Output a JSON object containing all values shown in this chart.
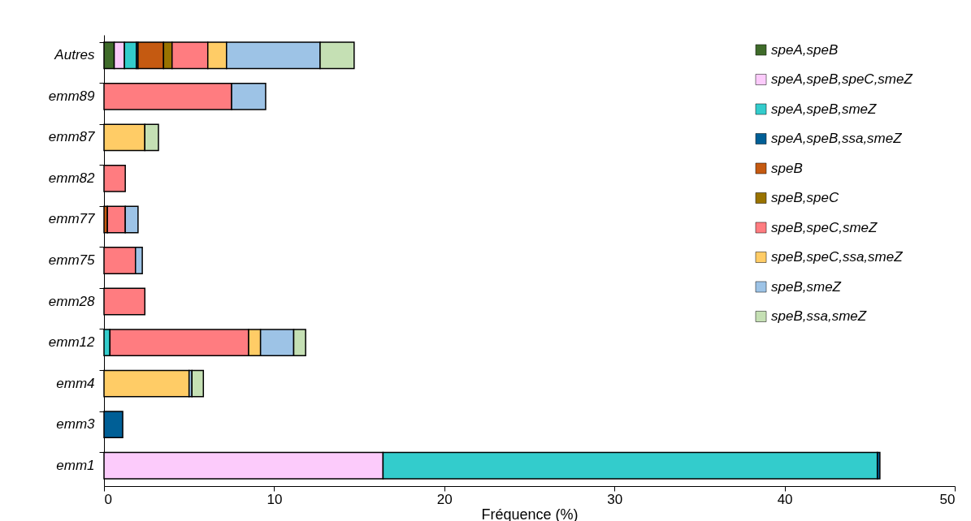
{
  "chart_data": {
    "type": "bar",
    "orientation": "horizontal",
    "stacked": true,
    "xlabel": "Fréquence (%)",
    "categories": [
      "Autres",
      "emm89",
      "emm87",
      "emm82",
      "emm77",
      "emm75",
      "emm28",
      "emm12",
      "emm4",
      "emm3",
      "emm1"
    ],
    "xlim": [
      0,
      50
    ],
    "xticks": [
      0,
      10,
      20,
      30,
      40,
      50
    ],
    "grid": false,
    "legend": "top right",
    "series": [
      {
        "name": "speA,speB",
        "color": "#3f6b2a",
        "values": [
          0.6,
          null,
          null,
          null,
          null,
          null,
          null,
          null,
          null,
          null,
          null
        ]
      },
      {
        "name": "speA,speB,speC,smeZ",
        "color": "#fccbfb",
        "values": [
          0.6,
          null,
          null,
          null,
          null,
          null,
          null,
          null,
          null,
          null,
          16.4
        ]
      },
      {
        "name": "speA,speB,smeZ",
        "color": "#33cccc",
        "values": [
          0.7,
          null,
          null,
          null,
          null,
          null,
          null,
          0.35,
          null,
          null,
          29.05
        ]
      },
      {
        "name": "speA,speB,ssa,smeZ",
        "color": "#005f96",
        "values": [
          0.1,
          null,
          null,
          null,
          null,
          null,
          null,
          null,
          null,
          1.1,
          0.15
        ]
      },
      {
        "name": "speB",
        "color": "#c55a11",
        "values": [
          1.5,
          null,
          null,
          null,
          0.2,
          null,
          null,
          null,
          null,
          null,
          null
        ]
      },
      {
        "name": "speB,speC",
        "color": "#997300",
        "values": [
          0.5,
          null,
          null,
          null,
          null,
          null,
          null,
          null,
          null,
          null,
          null
        ]
      },
      {
        "name": "speB,speC,smeZ",
        "color": "#ff7c80",
        "values": [
          2.1,
          7.5,
          null,
          1.25,
          1.05,
          1.85,
          2.4,
          8.15,
          null,
          null,
          null
        ]
      },
      {
        "name": "speB,speC,ssa,smeZ",
        "color": "#ffcc66",
        "values": [
          1.1,
          null,
          2.4,
          null,
          null,
          null,
          null,
          0.7,
          5.0,
          null,
          null
        ]
      },
      {
        "name": "speB,smeZ",
        "color": "#9dc3e6",
        "values": [
          5.5,
          2.0,
          null,
          null,
          0.75,
          0.4,
          null,
          1.95,
          0.17,
          null,
          null
        ]
      },
      {
        "name": "speB,ssa,smeZ",
        "color": "#c5e0b4",
        "values": [
          2.0,
          null,
          0.8,
          null,
          null,
          null,
          null,
          0.7,
          0.67,
          null,
          null
        ]
      }
    ]
  }
}
